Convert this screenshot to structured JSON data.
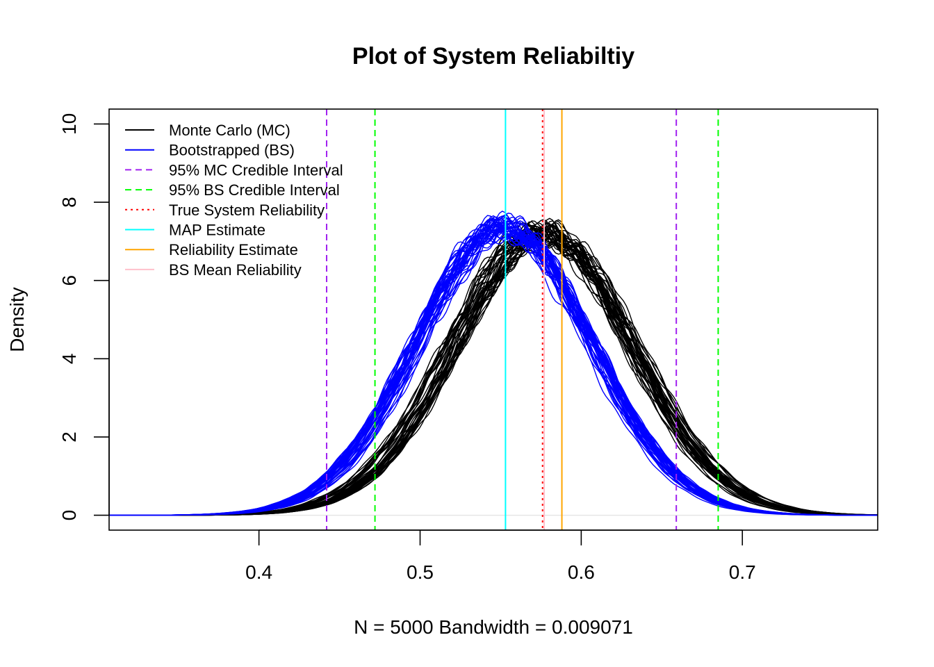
{
  "chart_data": {
    "type": "line",
    "title": "Plot of System Reliabiltiy",
    "xlabel": "N = 5000   Bandwidth = 0.009071",
    "ylabel": "Density",
    "xlim": [
      0.307,
      0.784
    ],
    "ylim": [
      -0.38,
      10.38
    ],
    "x_ticks": [
      0.4,
      0.5,
      0.6,
      0.7
    ],
    "x_tick_labels": [
      "0.4",
      "0.5",
      "0.6",
      "0.7"
    ],
    "y_ticks": [
      0,
      2,
      4,
      6,
      8,
      10
    ],
    "y_tick_labels": [
      "0",
      "2",
      "4",
      "6",
      "8",
      "10"
    ],
    "grid": false,
    "legend_position": "top-left",
    "series": [
      {
        "name": "Monte Carlo (MC)",
        "color": "#000000",
        "kind": "density-family",
        "replicates": 40,
        "peak_x": 0.576,
        "peak_density": 7.2,
        "sd": 0.055
      },
      {
        "name": "Bootstrapped (BS)",
        "color": "#0000ff",
        "kind": "density-family",
        "replicates": 40,
        "peak_x": 0.552,
        "peak_density": 7.35,
        "sd": 0.054
      }
    ],
    "vlines": [
      {
        "name": "95% MC Credible Interval",
        "x": 0.442,
        "color": "#a020f0",
        "dash": "dashed"
      },
      {
        "name": "95% MC Credible Interval",
        "x": 0.659,
        "color": "#a020f0",
        "dash": "dashed"
      },
      {
        "name": "95% BS Credible Interval",
        "x": 0.472,
        "color": "#00ff00",
        "dash": "dashed"
      },
      {
        "name": "95% BS Credible Interval",
        "x": 0.685,
        "color": "#00ff00",
        "dash": "dashed"
      },
      {
        "name": "True System Reliability",
        "x": 0.576,
        "color": "#ff0000",
        "dash": "dotted"
      },
      {
        "name": "MAP Estimate",
        "x": 0.553,
        "color": "#00ffff",
        "dash": "solid"
      },
      {
        "name": "Reliability Estimate",
        "x": 0.588,
        "color": "#ffa500",
        "dash": "solid"
      },
      {
        "name": "BS Mean Reliability",
        "x": 0.577,
        "color": "#ffc0cb",
        "dash": "solid"
      }
    ],
    "legend": [
      {
        "label": "Monte Carlo (MC)",
        "color": "#000000",
        "dash": "solid"
      },
      {
        "label": "Bootstrapped (BS)",
        "color": "#0000ff",
        "dash": "solid"
      },
      {
        "label": "95% MC Credible Interval",
        "color": "#a020f0",
        "dash": "dashed"
      },
      {
        "label": "95% BS Credible Interval",
        "color": "#00ff00",
        "dash": "dashed"
      },
      {
        "label": "True System Reliability",
        "color": "#ff0000",
        "dash": "dotted"
      },
      {
        "label": "MAP Estimate",
        "color": "#00ffff",
        "dash": "solid"
      },
      {
        "label": "Reliability Estimate",
        "color": "#ffa500",
        "dash": "solid"
      },
      {
        "label": "BS Mean Reliability",
        "color": "#ffc0cb",
        "dash": "solid"
      }
    ]
  }
}
